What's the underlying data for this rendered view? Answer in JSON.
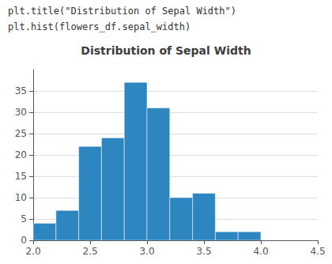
{
  "chart_data": {
    "type": "histogram",
    "title": "Distribution of Sepal Width",
    "annotations": [
      "plt.title(\"Distribution of Sepal Width\")",
      "plt.hist(flowers_df.sepal_width)"
    ],
    "bins": [
      2.0,
      2.2,
      2.4,
      2.6,
      2.8,
      3.0,
      3.2,
      3.4,
      3.6,
      3.8,
      4.0,
      4.2,
      4.4
    ],
    "values": [
      4,
      7,
      22,
      24,
      37,
      31,
      10,
      11,
      2,
      2,
      0,
      0
    ],
    "color": "#2e86c1",
    "xlim": [
      2.0,
      4.5
    ],
    "xticks": [
      {
        "value": 2.0,
        "label": "2.0"
      },
      2.5,
      {
        "value": 3.0,
        "label": "3.0"
      },
      3.5,
      {
        "value": 4.0,
        "label": "4.0"
      },
      4.5
    ],
    "ylim": [
      0,
      40
    ],
    "yticks": [
      0,
      5,
      10,
      15,
      20,
      25,
      30,
      35
    ],
    "grid": true
  }
}
